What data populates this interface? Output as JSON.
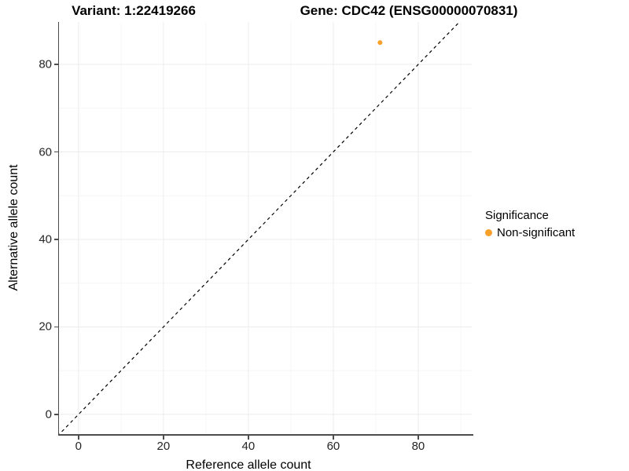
{
  "titles": {
    "variant": "Variant: 1:22419266",
    "gene": "Gene: CDC42 (ENSG00000070831)"
  },
  "chart_data": {
    "type": "scatter",
    "title_variant": "Variant: 1:22419266",
    "title_gene": "Gene: CDC42 (ENSG00000070831)",
    "xlabel": "Reference allele count",
    "ylabel": "Alternative allele count",
    "xlim": [
      -4.6,
      92.6
    ],
    "ylim": [
      -4.5,
      89.7
    ],
    "xticks": [
      0,
      20,
      40,
      60,
      80
    ],
    "yticks": [
      0,
      20,
      40,
      60,
      80
    ],
    "xticks_minor": [
      10,
      30,
      50,
      70,
      90
    ],
    "yticks_minor": [
      10,
      30,
      50,
      70,
      90
    ],
    "grid": true,
    "points": [
      {
        "x": 71,
        "y": 85,
        "series": "Non-significant"
      }
    ],
    "identity_line": {
      "slope": 1,
      "intercept": 0,
      "style": "dashed",
      "color": "#000000"
    },
    "legend": {
      "title": "Significance",
      "position": "right",
      "items": [
        {
          "label": "Non-significant",
          "color": "#F9A02B"
        }
      ]
    },
    "colors": {
      "point": "#F9A02B",
      "grid_major": "#ECECEC",
      "grid_minor": "#F6F6F6",
      "axis_line": "#4D4D4D"
    }
  }
}
